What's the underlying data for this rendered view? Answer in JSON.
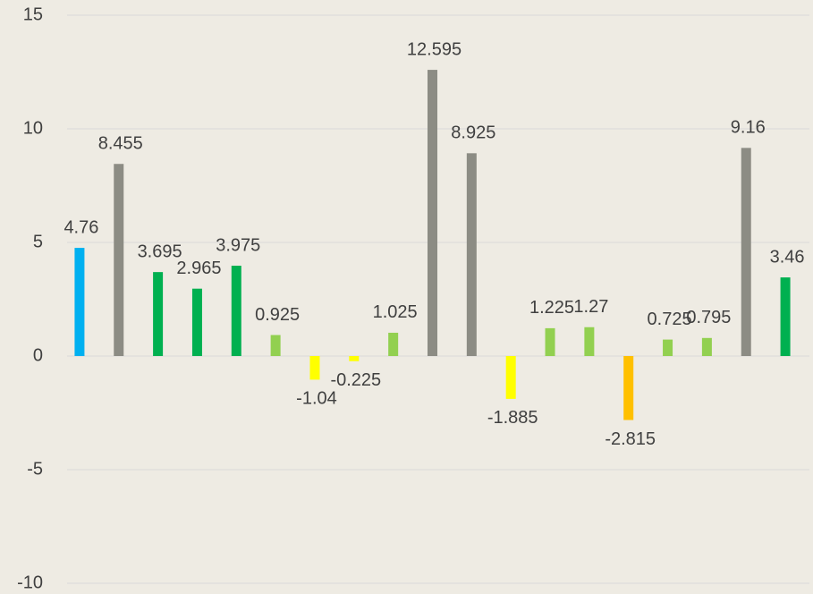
{
  "chart_data": {
    "type": "bar",
    "categories": [
      null,
      null,
      null,
      null,
      null,
      null,
      null,
      null,
      null,
      null,
      null,
      null,
      null,
      null,
      null,
      null,
      null,
      null,
      null
    ],
    "values": [
      4.76,
      8.455,
      3.695,
      2.965,
      3.975,
      0.925,
      -1.04,
      -0.225,
      1.025,
      12.595,
      8.925,
      -1.885,
      1.225,
      1.27,
      -2.815,
      0.725,
      0.795,
      9.16,
      3.46
    ],
    "colors": [
      "#00b0f0",
      "#8c8c84",
      "#00b050",
      "#00b050",
      "#00b050",
      "#92d050",
      "#ffff00",
      "#ffff00",
      "#92d050",
      "#8c8c84",
      "#8c8c84",
      "#ffff00",
      "#92d050",
      "#92d050",
      "#ffc000",
      "#92d050",
      "#92d050",
      "#8c8c84",
      "#00b050"
    ],
    "ylim": [
      -10,
      15
    ],
    "yticks": [
      -10,
      -5,
      0,
      5,
      10,
      15
    ],
    "grid": true
  }
}
